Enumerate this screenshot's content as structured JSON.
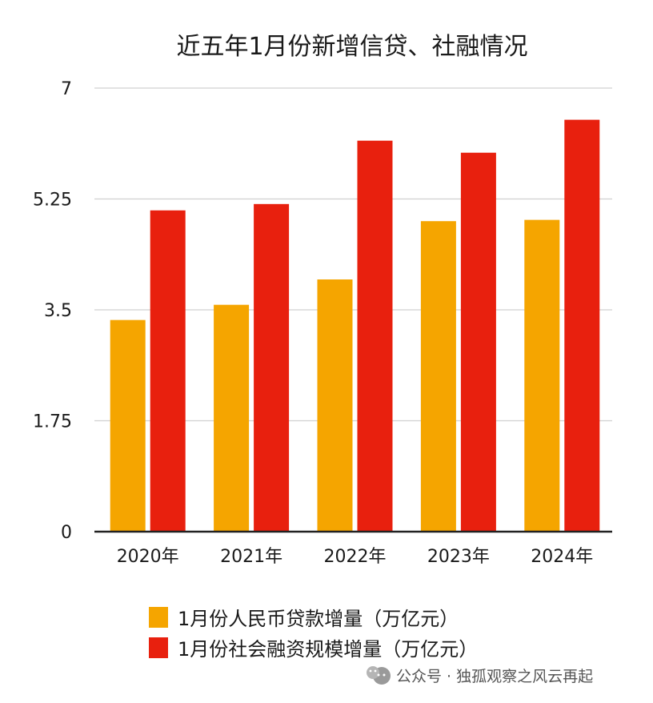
{
  "chart_data": {
    "type": "bar",
    "title": "近五年1月份新增信贷、社融情况",
    "categories": [
      "2020年",
      "2021年",
      "2022年",
      "2023年",
      "2024年"
    ],
    "series": [
      {
        "name": "1月份人民币贷款增量（万亿元）",
        "color": "#f5a500",
        "values": [
          3.34,
          3.58,
          3.98,
          4.9,
          4.92
        ]
      },
      {
        "name": "1月份社会融资规模增量（万亿元）",
        "color": "#e8200e",
        "values": [
          5.07,
          5.17,
          6.17,
          5.98,
          6.5
        ]
      }
    ],
    "yticks": [
      "0",
      "1.75",
      "3.5",
      "5.25",
      "7"
    ],
    "ylim": [
      0,
      7
    ],
    "grid": true,
    "legend": "bottom",
    "xlabel": "",
    "ylabel": ""
  },
  "watermark": "公众号 · 独孤观察之风云再起"
}
